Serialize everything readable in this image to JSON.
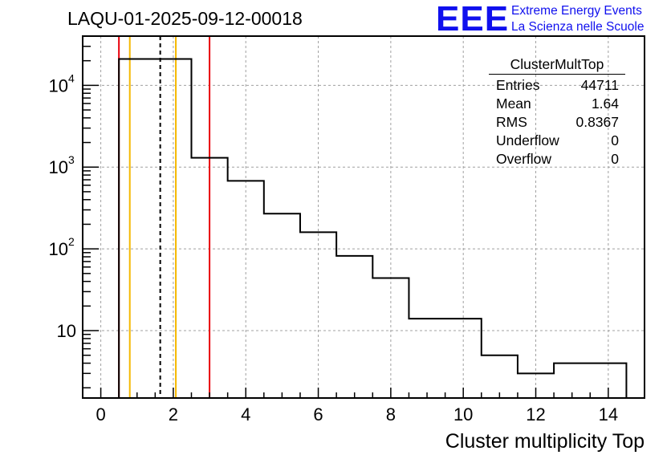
{
  "header": {
    "title": "LAQU-01-2025-09-12-00018",
    "logo_text": "EEE",
    "logo_line1": "Extreme Energy Events",
    "logo_line2": "La Scienza nelle Scuole"
  },
  "stats": {
    "name": "ClusterMultTop",
    "rows": [
      {
        "label": "Entries",
        "value": "44711"
      },
      {
        "label": "Mean",
        "value": "1.64"
      },
      {
        "label": "RMS",
        "value": "0.8367"
      },
      {
        "label": "Underflow",
        "value": "0"
      },
      {
        "label": "Overflow",
        "value": "0"
      }
    ]
  },
  "colors": {
    "histogram": "#000000",
    "red_line": "#e8000b",
    "orange_line": "#f5b800",
    "grid": "#a0a0a0",
    "logo": "#1010ee"
  },
  "chart_data": {
    "type": "histogram",
    "title": "LAQU-01-2025-09-12-00018",
    "xlabel": "Cluster multiplicity Top",
    "ylabel": "",
    "yscale": "log",
    "xlim": [
      -0.5,
      15.0
    ],
    "ylim": [
      1.5,
      40000
    ],
    "grid": true,
    "xticks": [
      0,
      2,
      4,
      6,
      8,
      10,
      12,
      14
    ],
    "xtick_labels": [
      "0",
      "2",
      "4",
      "6",
      "8",
      "10",
      "12",
      "14"
    ],
    "yticks": [
      10,
      100,
      1000,
      10000
    ],
    "ytick_labels": [
      {
        "base": "10",
        "exp": ""
      },
      {
        "base": "10",
        "exp": "2"
      },
      {
        "base": "10",
        "exp": "3"
      },
      {
        "base": "10",
        "exp": "4"
      }
    ],
    "bins": [
      {
        "low": 0.5,
        "high": 1.5,
        "count": 21000
      },
      {
        "low": 1.5,
        "high": 2.5,
        "count": 21000
      },
      {
        "low": 2.5,
        "high": 3.5,
        "count": 1300
      },
      {
        "low": 3.5,
        "high": 4.5,
        "count": 680
      },
      {
        "low": 4.5,
        "high": 5.5,
        "count": 270
      },
      {
        "low": 5.5,
        "high": 6.5,
        "count": 160
      },
      {
        "low": 6.5,
        "high": 7.5,
        "count": 82
      },
      {
        "low": 7.5,
        "high": 8.5,
        "count": 44
      },
      {
        "low": 8.5,
        "high": 9.5,
        "count": 14
      },
      {
        "low": 9.5,
        "high": 10.5,
        "count": 14
      },
      {
        "low": 10.5,
        "high": 11.5,
        "count": 5
      },
      {
        "low": 11.5,
        "high": 12.5,
        "count": 3
      },
      {
        "low": 12.5,
        "high": 13.5,
        "count": 4
      },
      {
        "low": 13.5,
        "high": 14.5,
        "count": 4
      }
    ],
    "vertical_lines": [
      {
        "x": 0.5,
        "color": "red",
        "style": "solid"
      },
      {
        "x": 0.8,
        "color": "orange",
        "style": "solid"
      },
      {
        "x": 1.64,
        "color": "black",
        "style": "dashed"
      },
      {
        "x": 2.07,
        "color": "orange",
        "style": "solid"
      },
      {
        "x": 3.0,
        "color": "red",
        "style": "solid"
      }
    ]
  }
}
